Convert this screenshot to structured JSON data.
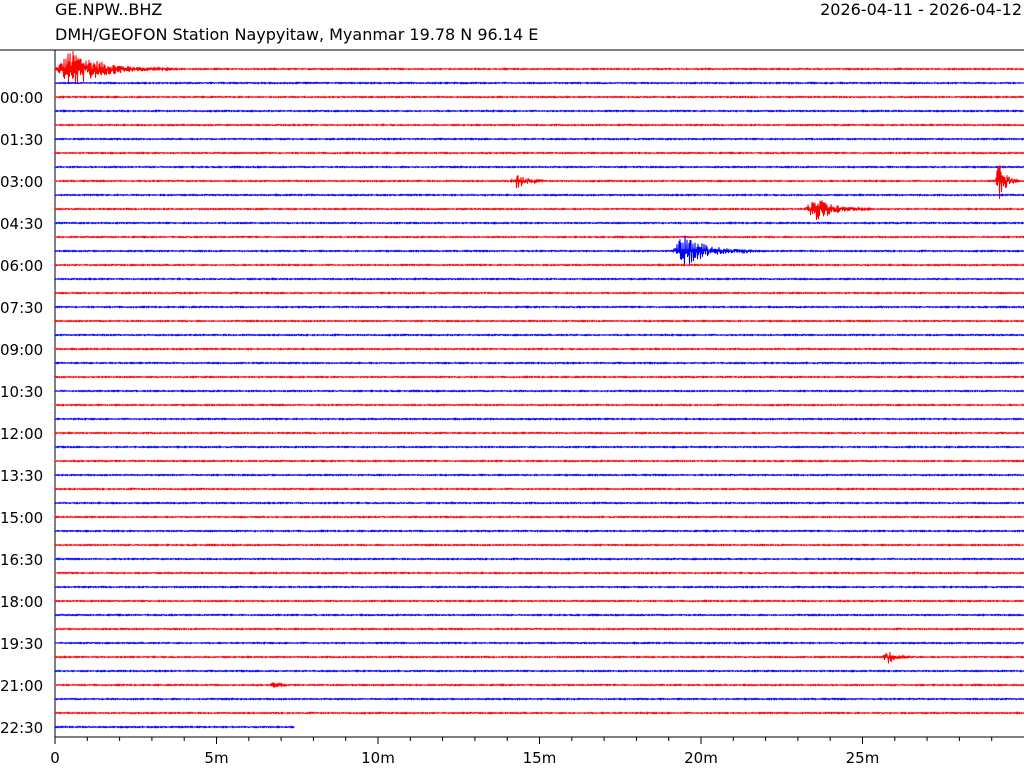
{
  "header": {
    "station_code": "GE.NPW..BHZ",
    "description": "DMH/GEOFON Station Naypyitaw, Myanmar  19.78 N 96.14 E",
    "date_range": "2026-04-11 - 2026-04-12"
  },
  "colors": {
    "line_a": "#ff0000",
    "line_b": "#0000ff",
    "axis": "#000000"
  },
  "chart_data": {
    "type": "line",
    "title": "",
    "xlabel": "",
    "ylabel": "",
    "x_range_minutes": [
      0,
      30
    ],
    "x_ticks": [
      {
        "value": 0,
        "label": "0"
      },
      {
        "value": 5,
        "label": "5m"
      },
      {
        "value": 10,
        "label": "10m"
      },
      {
        "value": 15,
        "label": "15m"
      },
      {
        "value": 20,
        "label": "20m"
      },
      {
        "value": 25,
        "label": "25m"
      }
    ],
    "minor_tick_step_minutes": 1,
    "trace_count": 48,
    "trace_minutes": 30,
    "last_trace_end_minute": 7.4,
    "trace_colors": [
      "#ff0000",
      "#0000ff"
    ],
    "hour_labels": [
      {
        "trace": 2,
        "label": "00:00"
      },
      {
        "trace": 5,
        "label": "01:30"
      },
      {
        "trace": 8,
        "label": "03:00"
      },
      {
        "trace": 11,
        "label": "04:30"
      },
      {
        "trace": 14,
        "label": "06:00"
      },
      {
        "trace": 17,
        "label": "07:30"
      },
      {
        "trace": 20,
        "label": "09:00"
      },
      {
        "trace": 23,
        "label": "10:30"
      },
      {
        "trace": 26,
        "label": "12:00"
      },
      {
        "trace": 29,
        "label": "13:30"
      },
      {
        "trace": 32,
        "label": "15:00"
      },
      {
        "trace": 35,
        "label": "16:30"
      },
      {
        "trace": 38,
        "label": "18:00"
      },
      {
        "trace": 41,
        "label": "19:30"
      },
      {
        "trace": 44,
        "label": "21:00"
      },
      {
        "trace": 47,
        "label": "22:30"
      }
    ],
    "events": [
      {
        "trace": 0,
        "start_min": 0.0,
        "duration_min": 4.0,
        "amplitude": 20
      },
      {
        "trace": 8,
        "start_min": 14.1,
        "duration_min": 1.5,
        "amplitude": 8
      },
      {
        "trace": 8,
        "start_min": 29.1,
        "duration_min": 0.9,
        "amplitude": 20
      },
      {
        "trace": 10,
        "start_min": 23.2,
        "duration_min": 2.5,
        "amplitude": 13
      },
      {
        "trace": 13,
        "start_min": 19.1,
        "duration_min": 3.0,
        "amplitude": 17
      },
      {
        "trace": 42,
        "start_min": 25.6,
        "duration_min": 1.2,
        "amplitude": 8
      },
      {
        "trace": 44,
        "start_min": 6.6,
        "duration_min": 1.2,
        "amplitude": 3
      }
    ]
  }
}
